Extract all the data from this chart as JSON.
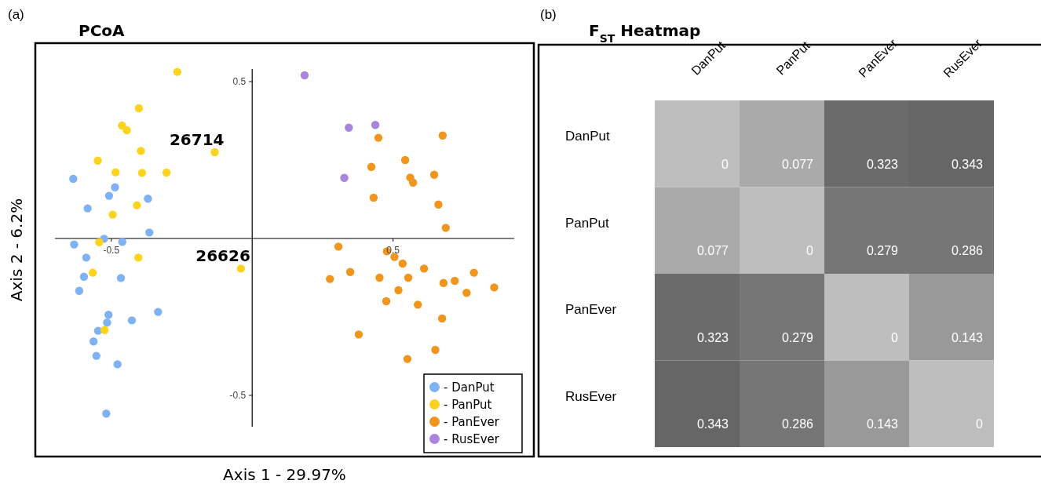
{
  "chart_data": [
    {
      "type": "scatter",
      "title": "PCoA",
      "xlabel": "Axis 1 - 29.97%",
      "ylabel": "Axis 2 - 6.2%",
      "xlim": [
        -0.7,
        0.93
      ],
      "ylim": [
        -0.6,
        0.54
      ],
      "xticks": [
        -0.5,
        0.5
      ],
      "yticks": [
        -0.5,
        0.5
      ],
      "legend": "bottom right",
      "marker": "circle",
      "annotations": [
        "(a)",
        {
          "text": "26714",
          "x": -0.133,
          "y": 0.275
        },
        {
          "text": "26626",
          "x": -0.04,
          "y": -0.096
        }
      ],
      "series": [
        {
          "name": "- DanPut",
          "color": "#7fb2f5",
          "x": [
            -0.635,
            -0.487,
            -0.508,
            -0.37,
            -0.584,
            -0.365,
            -0.526,
            -0.632,
            -0.461,
            -0.589,
            -0.597,
            -0.466,
            -0.614,
            -0.51,
            -0.515,
            -0.427,
            -0.334,
            -0.547,
            -0.563,
            -0.553,
            -0.478,
            -0.518
          ],
          "values": [
            0.19,
            0.163,
            0.136,
            0.127,
            0.096,
            0.019,
            -0.001,
            -0.019,
            -0.011,
            -0.061,
            -0.122,
            -0.126,
            -0.167,
            -0.243,
            -0.268,
            -0.261,
            -0.234,
            -0.294,
            -0.328,
            -0.374,
            -0.401,
            -0.558
          ]
        },
        {
          "name": "- PanPut",
          "color": "#fcd31f",
          "x": [
            -0.266,
            -0.402,
            -0.462,
            -0.445,
            -0.395,
            -0.548,
            -0.485,
            -0.391,
            -0.304,
            -0.133,
            -0.409,
            -0.495,
            -0.543,
            -0.404,
            -0.566,
            -0.524,
            -0.04
          ],
          "values": [
            0.531,
            0.415,
            0.36,
            0.345,
            0.279,
            0.248,
            0.211,
            0.209,
            0.21,
            0.275,
            0.106,
            0.076,
            -0.012,
            -0.061,
            -0.109,
            -0.292,
            -0.096
          ]
        },
        {
          "name": "- PanEver",
          "color": "#f0961e",
          "x": [
            0.448,
            0.676,
            0.543,
            0.423,
            0.561,
            0.571,
            0.646,
            0.431,
            0.661,
            0.687,
            0.306,
            0.478,
            0.505,
            0.534,
            0.61,
            0.787,
            0.348,
            0.276,
            0.452,
            0.554,
            0.679,
            0.719,
            0.859,
            0.519,
            0.761,
            0.476,
            0.588,
            0.674,
            0.378,
            0.65,
            0.551
          ],
          "values": [
            0.321,
            0.328,
            0.25,
            0.228,
            0.194,
            0.178,
            0.203,
            0.13,
            0.108,
            0.034,
            -0.026,
            -0.041,
            -0.059,
            -0.08,
            -0.096,
            -0.109,
            -0.107,
            -0.129,
            -0.125,
            -0.125,
            -0.142,
            -0.135,
            -0.156,
            -0.165,
            -0.173,
            -0.2,
            -0.211,
            -0.255,
            -0.306,
            -0.355,
            -0.384
          ]
        },
        {
          "name": "- RusEver",
          "color": "#a985e0",
          "x": [
            0.186,
            0.343,
            0.437,
            0.327
          ],
          "values": [
            0.52,
            0.353,
            0.362,
            0.193
          ]
        }
      ]
    },
    {
      "type": "heatmap",
      "title": "F$_{ST}$ Heatmap",
      "annotations": [
        "(b)"
      ],
      "data_labels": true,
      "categories": [
        "DanPut",
        "PanPut",
        "PanEver",
        "RusEver"
      ],
      "y_categories": [
        "DanPut",
        "PanPut",
        "PanEver",
        "RusEver"
      ],
      "cells": [
        [
          0,
          0.077,
          0.323,
          0.343
        ],
        [
          0.077,
          0,
          0.279,
          0.286
        ],
        [
          0.323,
          0.279,
          0,
          0.143
        ],
        [
          0.343,
          0.286,
          0.143,
          0
        ]
      ]
    }
  ]
}
